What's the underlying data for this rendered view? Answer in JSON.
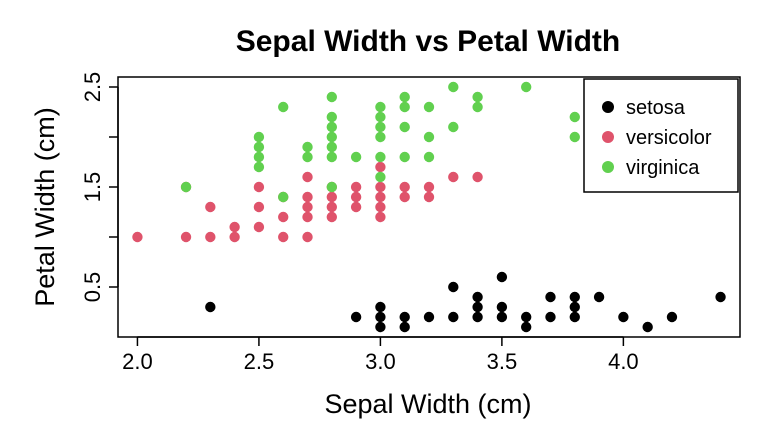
{
  "chart_data": {
    "type": "scatter",
    "title": "Sepal Width vs Petal Width",
    "xlabel": "Sepal Width (cm)",
    "ylabel": "Petal Width (cm)",
    "xlim": [
      1.92,
      4.48
    ],
    "ylim": [
      0.0,
      2.6
    ],
    "x_ticks": [
      2.0,
      2.5,
      3.0,
      3.5,
      4.0
    ],
    "x_tick_labels": [
      "2.0",
      "2.5",
      "3.0",
      "3.5",
      "4.0"
    ],
    "y_ticks": [
      0.5,
      1.0,
      1.5,
      2.0,
      2.5
    ],
    "y_tick_labels": [
      "0.5",
      "",
      "1.5",
      "",
      "2.5"
    ],
    "grid": false,
    "legend_position": "top-right",
    "series": [
      {
        "name": "setosa",
        "color": "#000000",
        "points": [
          [
            2.3,
            0.3
          ],
          [
            2.9,
            0.2
          ],
          [
            3.0,
            0.1
          ],
          [
            3.0,
            0.2
          ],
          [
            3.0,
            0.3
          ],
          [
            3.1,
            0.1
          ],
          [
            3.1,
            0.2
          ],
          [
            3.2,
            0.2
          ],
          [
            3.3,
            0.2
          ],
          [
            3.3,
            0.5
          ],
          [
            3.4,
            0.2
          ],
          [
            3.4,
            0.3
          ],
          [
            3.4,
            0.4
          ],
          [
            3.5,
            0.2
          ],
          [
            3.5,
            0.3
          ],
          [
            3.5,
            0.6
          ],
          [
            3.6,
            0.1
          ],
          [
            3.6,
            0.2
          ],
          [
            3.7,
            0.2
          ],
          [
            3.7,
            0.4
          ],
          [
            3.8,
            0.2
          ],
          [
            3.8,
            0.3
          ],
          [
            3.8,
            0.4
          ],
          [
            3.9,
            0.4
          ],
          [
            4.0,
            0.2
          ],
          [
            4.1,
            0.1
          ],
          [
            4.2,
            0.2
          ],
          [
            4.4,
            0.4
          ]
        ]
      },
      {
        "name": "versicolor",
        "color": "#DF536B",
        "points": [
          [
            2.0,
            1.0
          ],
          [
            2.2,
            1.0
          ],
          [
            2.2,
            1.5
          ],
          [
            2.3,
            1.0
          ],
          [
            2.3,
            1.3
          ],
          [
            2.4,
            1.0
          ],
          [
            2.4,
            1.1
          ],
          [
            2.5,
            1.1
          ],
          [
            2.5,
            1.3
          ],
          [
            2.5,
            1.5
          ],
          [
            2.6,
            1.0
          ],
          [
            2.6,
            1.2
          ],
          [
            2.6,
            1.4
          ],
          [
            2.7,
            1.0
          ],
          [
            2.7,
            1.2
          ],
          [
            2.7,
            1.3
          ],
          [
            2.7,
            1.4
          ],
          [
            2.7,
            1.6
          ],
          [
            2.8,
            1.2
          ],
          [
            2.8,
            1.3
          ],
          [
            2.8,
            1.4
          ],
          [
            2.8,
            1.5
          ],
          [
            2.9,
            1.3
          ],
          [
            2.9,
            1.4
          ],
          [
            2.9,
            1.5
          ],
          [
            3.0,
            1.2
          ],
          [
            3.0,
            1.3
          ],
          [
            3.0,
            1.4
          ],
          [
            3.0,
            1.5
          ],
          [
            3.0,
            1.7
          ],
          [
            3.1,
            1.4
          ],
          [
            3.1,
            1.5
          ],
          [
            3.2,
            1.4
          ],
          [
            3.2,
            1.5
          ],
          [
            3.3,
            1.6
          ],
          [
            3.4,
            1.6
          ]
        ]
      },
      {
        "name": "virginica",
        "color": "#61D04F",
        "points": [
          [
            2.2,
            1.5
          ],
          [
            2.5,
            1.7
          ],
          [
            2.5,
            1.8
          ],
          [
            2.5,
            1.9
          ],
          [
            2.5,
            2.0
          ],
          [
            2.6,
            1.4
          ],
          [
            2.6,
            2.3
          ],
          [
            2.7,
            1.8
          ],
          [
            2.7,
            1.9
          ],
          [
            2.8,
            1.5
          ],
          [
            2.8,
            1.8
          ],
          [
            2.8,
            1.9
          ],
          [
            2.8,
            2.0
          ],
          [
            2.8,
            2.1
          ],
          [
            2.8,
            2.2
          ],
          [
            2.8,
            2.4
          ],
          [
            2.9,
            1.8
          ],
          [
            3.0,
            1.6
          ],
          [
            3.0,
            1.8
          ],
          [
            3.0,
            2.0
          ],
          [
            3.0,
            2.1
          ],
          [
            3.0,
            2.2
          ],
          [
            3.0,
            2.3
          ],
          [
            3.1,
            1.8
          ],
          [
            3.1,
            2.1
          ],
          [
            3.1,
            2.3
          ],
          [
            3.1,
            2.4
          ],
          [
            3.2,
            1.8
          ],
          [
            3.2,
            2.0
          ],
          [
            3.2,
            2.3
          ],
          [
            3.3,
            2.1
          ],
          [
            3.3,
            2.5
          ],
          [
            3.4,
            2.3
          ],
          [
            3.4,
            2.4
          ],
          [
            3.6,
            2.5
          ],
          [
            3.8,
            2.0
          ],
          [
            3.8,
            2.2
          ]
        ]
      }
    ]
  }
}
